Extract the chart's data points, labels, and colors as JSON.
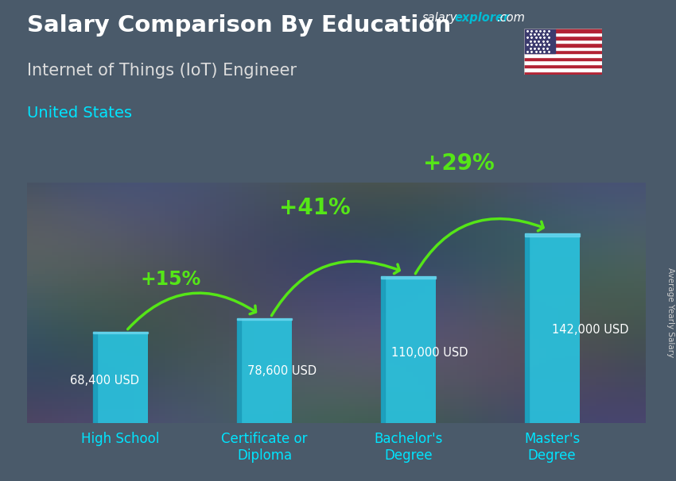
{
  "title_main": "Salary Comparison By Education",
  "title_sub": "Internet of Things (IoT) Engineer",
  "title_country": "United States",
  "ylabel_rotated": "Average Yearly Salary",
  "categories": [
    "High School",
    "Certificate or\nDiploma",
    "Bachelor's\nDegree",
    "Master's\nDegree"
  ],
  "values": [
    68400,
    78600,
    110000,
    142000
  ],
  "value_labels": [
    "68,400 USD",
    "78,600 USD",
    "110,000 USD",
    "142,000 USD"
  ],
  "pct_labels": [
    "+15%",
    "+41%",
    "+29%"
  ],
  "bar_color": "#29c4e0",
  "arrow_color": "#55e617",
  "pct_color": "#55e617",
  "title_color": "#ffffff",
  "subtitle_color": "#dddddd",
  "country_color": "#00e5ff",
  "value_label_color": "#ffffff",
  "xlabel_color": "#00e5ff",
  "bg_color": "#4a5a6a",
  "watermark_salary_color": "#ffffff",
  "watermark_explorer_color": "#00bcd4",
  "watermark_com_color": "#ffffff",
  "ylim": [
    0,
    180000
  ],
  "figsize": [
    8.5,
    6.06
  ],
  "dpi": 100
}
